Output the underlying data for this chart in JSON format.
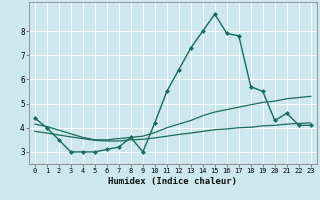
{
  "title": "",
  "xlabel": "Humidex (Indice chaleur)",
  "ylabel": "",
  "background_color": "#cce8ee",
  "grid_color": "#ffffff",
  "line_color": "#1a6b5a",
  "xlim": [
    -0.5,
    23.5
  ],
  "ylim": [
    2.5,
    9.2
  ],
  "yticks": [
    3,
    4,
    5,
    6,
    7,
    8
  ],
  "xticks": [
    0,
    1,
    2,
    3,
    4,
    5,
    6,
    7,
    8,
    9,
    10,
    11,
    12,
    13,
    14,
    15,
    16,
    17,
    18,
    19,
    20,
    21,
    22,
    23
  ],
  "series": [
    {
      "x": [
        0,
        1,
        2,
        3,
        4,
        5,
        6,
        7,
        8,
        9,
        10,
        11,
        12,
        13,
        14,
        15,
        16,
        17,
        18,
        19,
        20,
        21,
        22,
        23
      ],
      "y": [
        4.4,
        4.0,
        3.5,
        3.0,
        3.0,
        3.0,
        3.1,
        3.2,
        3.6,
        3.0,
        4.2,
        5.5,
        6.4,
        7.3,
        8.0,
        8.7,
        7.9,
        7.8,
        5.7,
        5.5,
        4.3,
        4.6,
        4.1,
        4.1
      ],
      "marker": "D",
      "markersize": 2.0,
      "linewidth": 1.0
    },
    {
      "x": [
        0,
        1,
        2,
        3,
        4,
        5,
        6,
        7,
        8,
        9,
        10,
        11,
        12,
        13,
        14,
        15,
        16,
        17,
        18,
        19,
        20,
        21,
        22,
        23
      ],
      "y": [
        4.15,
        4.05,
        3.9,
        3.75,
        3.6,
        3.5,
        3.5,
        3.55,
        3.6,
        3.65,
        3.8,
        4.0,
        4.15,
        4.3,
        4.5,
        4.65,
        4.75,
        4.85,
        4.95,
        5.05,
        5.1,
        5.2,
        5.25,
        5.3
      ],
      "marker": null,
      "markersize": 0,
      "linewidth": 0.9
    },
    {
      "x": [
        0,
        1,
        2,
        3,
        4,
        5,
        6,
        7,
        8,
        9,
        10,
        11,
        12,
        13,
        14,
        15,
        16,
        17,
        18,
        19,
        20,
        21,
        22,
        23
      ],
      "y": [
        3.85,
        3.78,
        3.7,
        3.62,
        3.55,
        3.48,
        3.45,
        3.45,
        3.5,
        3.52,
        3.58,
        3.65,
        3.72,
        3.78,
        3.85,
        3.92,
        3.95,
        4.0,
        4.02,
        4.08,
        4.1,
        4.15,
        4.18,
        4.2
      ],
      "marker": null,
      "markersize": 0,
      "linewidth": 0.9
    }
  ]
}
